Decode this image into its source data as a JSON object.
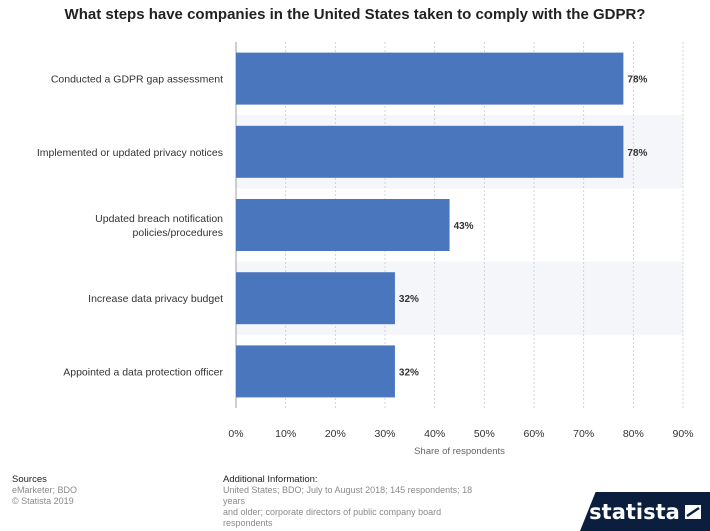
{
  "chart_data": {
    "type": "bar",
    "orientation": "horizontal",
    "title": "What steps have companies in the United States taken to comply with the GDPR?",
    "xlabel": "Share of respondents",
    "categories": [
      "Conducted a GDPR gap assessment",
      "Implemented or updated privacy notices",
      "Updated breach notification policies/procedures",
      "Increase data privacy budget",
      "Appointed a data protection officer"
    ],
    "category_lines": [
      [
        "Conducted a GDPR gap assessment"
      ],
      [
        "Implemented or updated privacy notices"
      ],
      [
        "Updated breach notification",
        "policies/procedures"
      ],
      [
        "Increase data privacy budget"
      ],
      [
        "Appointed a data protection officer"
      ]
    ],
    "values": [
      78,
      78,
      43,
      32,
      32
    ],
    "value_labels": [
      "78%",
      "78%",
      "43%",
      "32%",
      "32%"
    ],
    "xlim": [
      0,
      90
    ],
    "ticks": [
      0,
      10,
      20,
      30,
      40,
      50,
      60,
      70,
      80,
      90
    ],
    "tick_labels": [
      "0%",
      "10%",
      "20%",
      "30%",
      "40%",
      "50%",
      "60%",
      "70%",
      "80%",
      "90%"
    ],
    "bar_color": "#4a76be",
    "grid": true
  },
  "footer": {
    "sources_heading": "Sources",
    "sources_lines": [
      "eMarketer; BDO",
      "© Statista 2019"
    ],
    "additional_heading": "Additional Information:",
    "additional_lines": [
      "United States; BDO; July to August 2018; 145 respondents; 18 years",
      "and older; corporate directors of public company board",
      "respondents"
    ],
    "brand": "statista"
  }
}
